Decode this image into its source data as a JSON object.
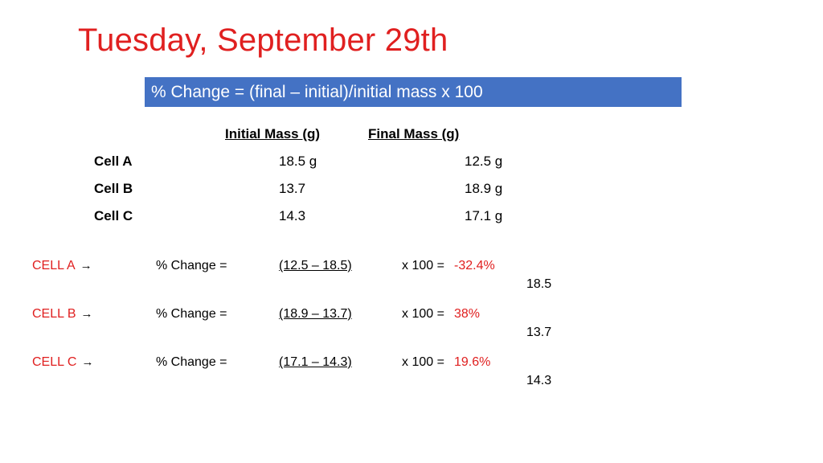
{
  "title": "Tuesday, September 29th",
  "formula": "% Change = (final – initial)/initial mass x 100",
  "table": {
    "headers": {
      "initial": "Initial Mass (g)",
      "final": "Final Mass (g)"
    },
    "rows": [
      {
        "name": "Cell A",
        "initial": "18.5 g",
        "final": "12.5 g"
      },
      {
        "name": "Cell B",
        "initial": "13.7",
        "final": "18.9 g"
      },
      {
        "name": "Cell C",
        "initial": "14.3",
        "final": "17.1 g"
      }
    ]
  },
  "calculations": [
    {
      "label": "CELL A",
      "arrow": "→",
      "pct_label": "% Change =",
      "numerator": "(12.5 – 18.5)",
      "times": "x 100 =",
      "result": "-32.4%",
      "denominator": "18.5"
    },
    {
      "label": "CELL B",
      "arrow": "→",
      "pct_label": "% Change =",
      "numerator": "(18.9 – 13.7)",
      "times": "x 100 =",
      "result": "38%",
      "denominator": "13.7"
    },
    {
      "label": "CELL C",
      "arrow": "→",
      "pct_label": "% Change =",
      "numerator": "(17.1 – 14.3)",
      "times": "x 100 =",
      "result": "19.6%",
      "denominator": "14.3"
    }
  ],
  "colors": {
    "title": "#e02020",
    "formula_bg": "#4472c4",
    "result": "#e02020"
  }
}
